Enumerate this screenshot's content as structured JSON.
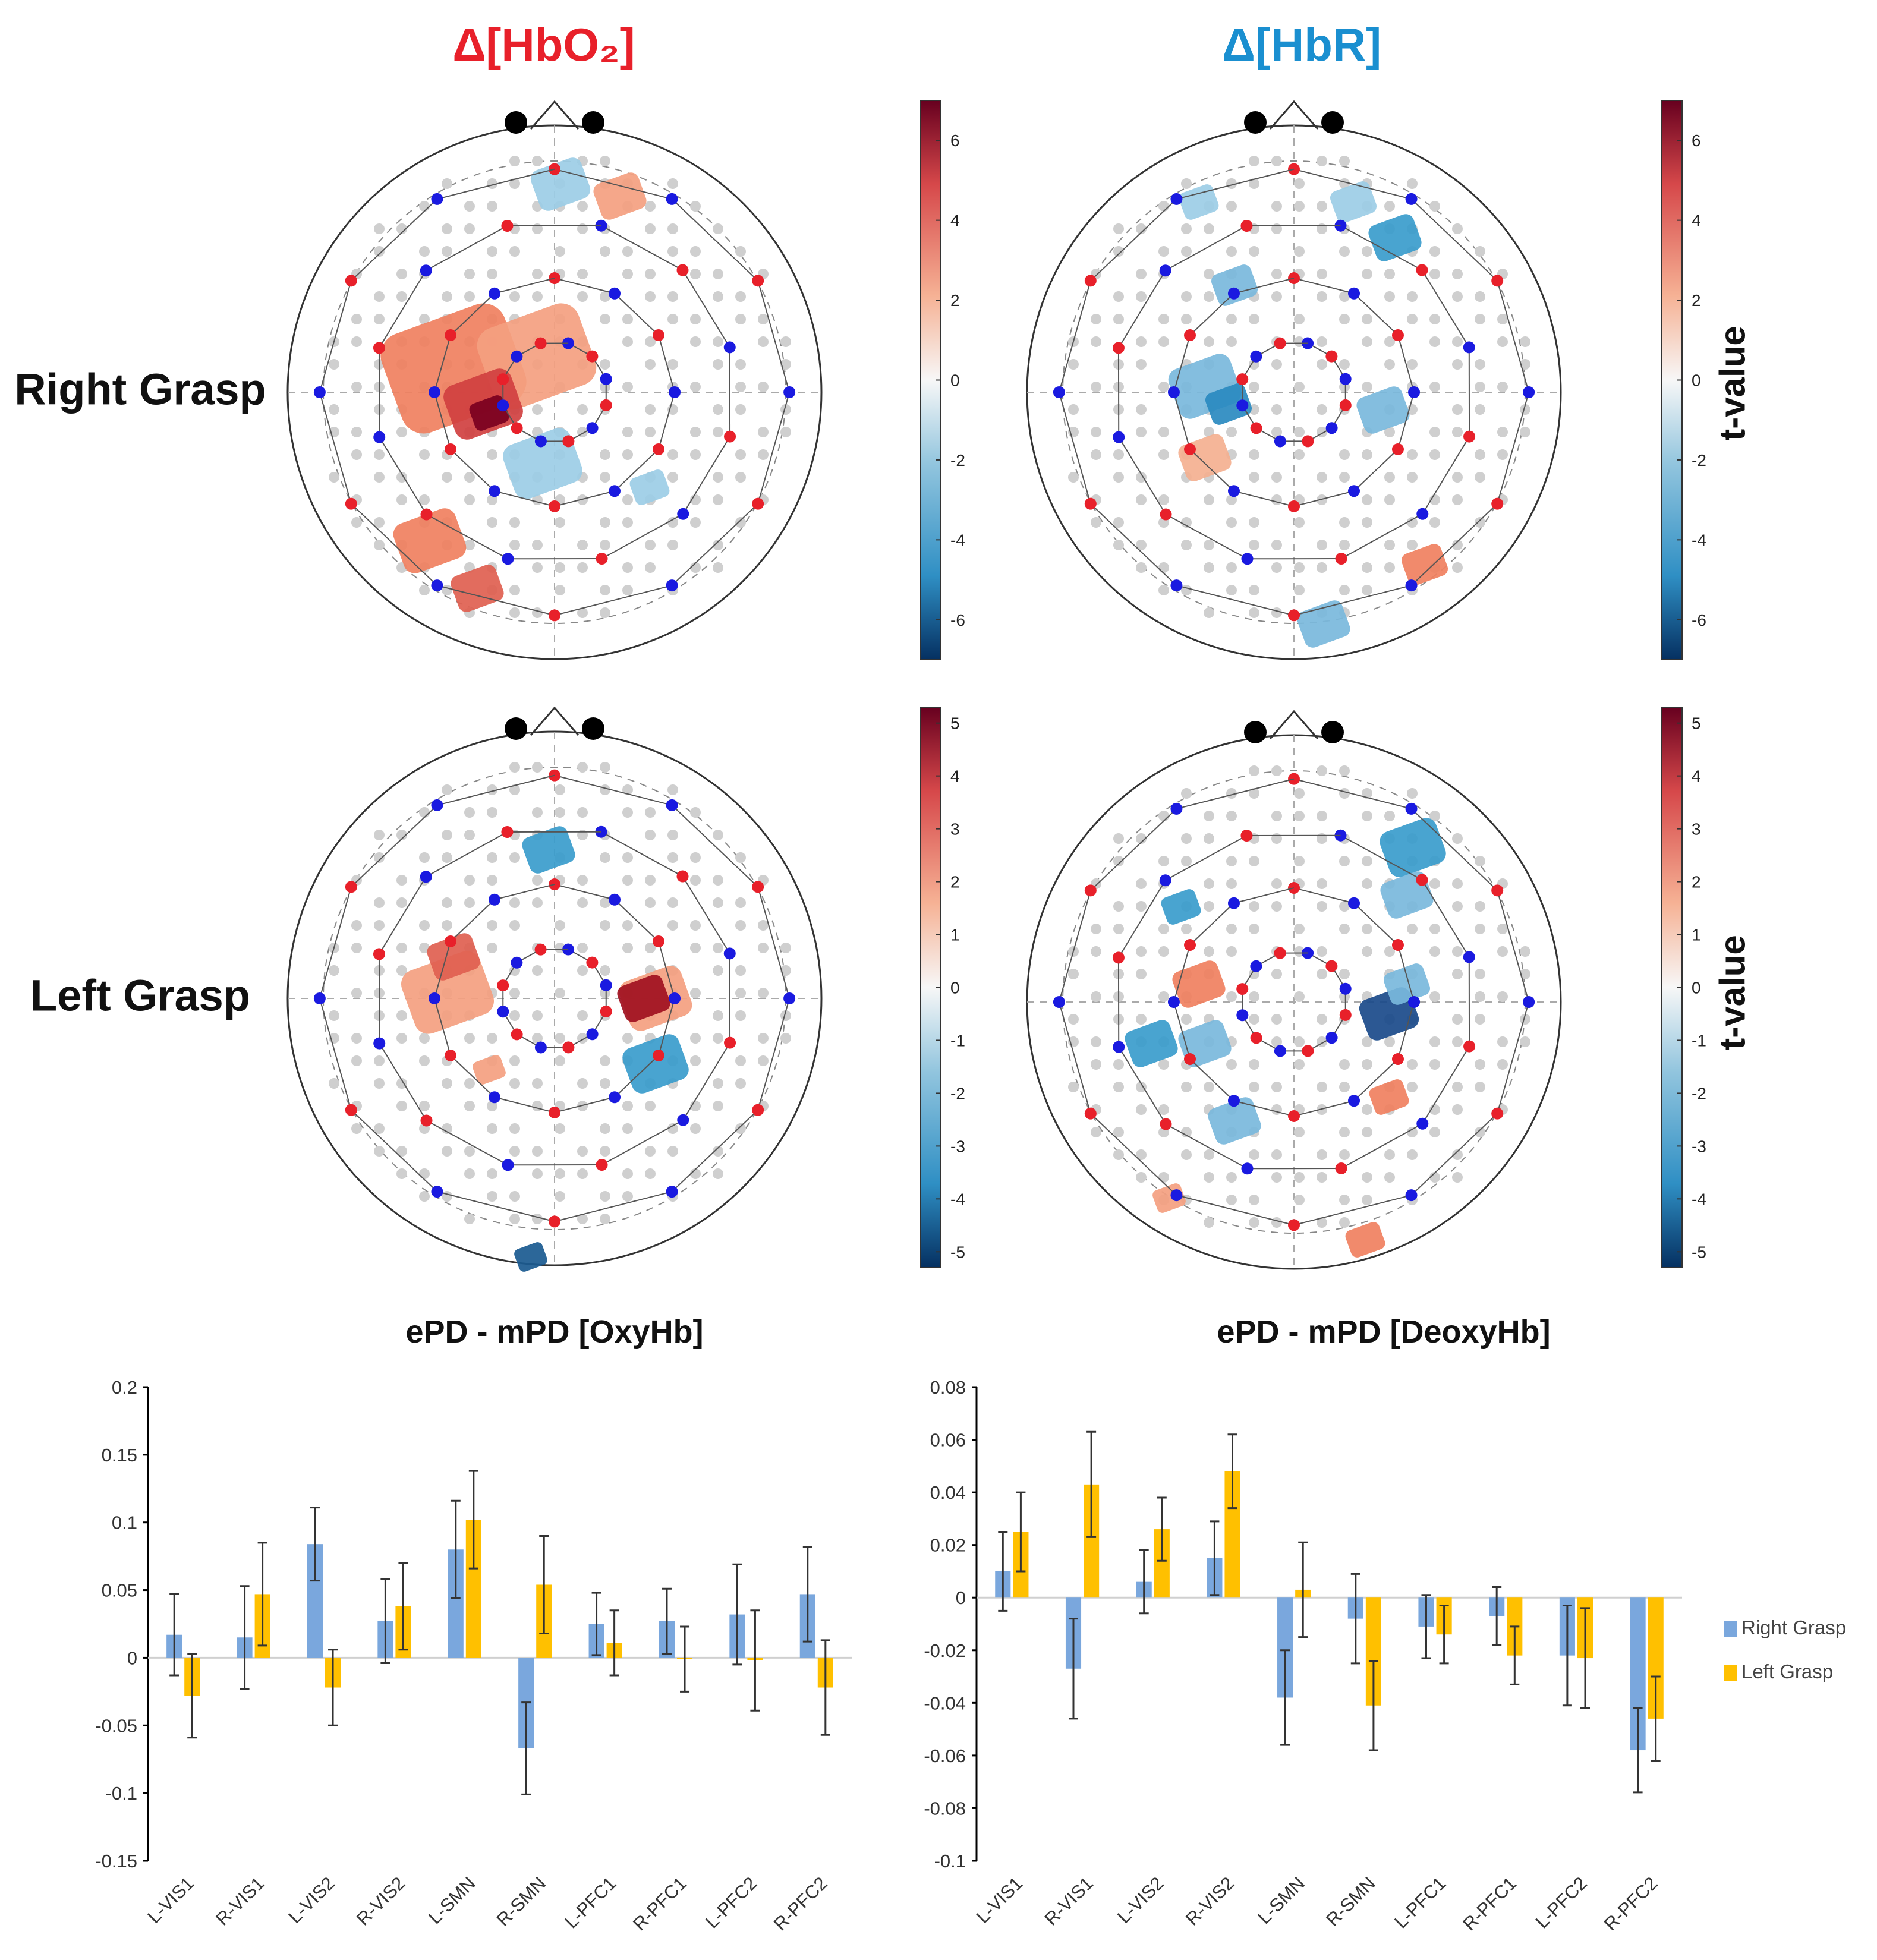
{
  "columns": {
    "hbo2": "Δ[HbO₂]",
    "hbr": "Δ[HbR]"
  },
  "rows": {
    "right": "Right Grasp",
    "left": "Left Grasp"
  },
  "colorbar_label": "t-value",
  "colors": {
    "hbo2": "#e8202a",
    "hbr": "#1a8fd0",
    "right": "#7aa7dd",
    "left": "#ffc000",
    "red_optode": "#e8202a",
    "blue_optode": "#1a1ae0"
  },
  "colorbars": [
    {
      "ticks": [
        "6",
        "4",
        "2",
        "0",
        "-2",
        "-4",
        "-6"
      ],
      "range": [
        -7,
        7
      ]
    },
    {
      "ticks": [
        "6",
        "4",
        "2",
        "0",
        "-2",
        "-4",
        "-6"
      ],
      "range": [
        -7,
        7
      ]
    },
    {
      "ticks": [
        "5",
        "4",
        "3",
        "2",
        "1",
        "0",
        "-1",
        "-2",
        "-3",
        "-4",
        "-5"
      ],
      "range": [
        -5.3,
        5.3
      ]
    },
    {
      "ticks": [
        "5",
        "4",
        "3",
        "2",
        "1",
        "0",
        "-1",
        "-2",
        "-3",
        "-4",
        "-5"
      ],
      "range": [
        -5.3,
        5.3
      ]
    }
  ],
  "chart_data": [
    {
      "type": "bar",
      "title": "ePD - mPD [OxyHb]",
      "categories": [
        "L-VIS1",
        "R-VIS1",
        "L-VIS2",
        "R-VIS2",
        "L-SMN",
        "R-SMN",
        "L-PFC1",
        "R-PFC1",
        "L-PFC2",
        "R-PFC2"
      ],
      "ylim": [
        -0.15,
        0.2
      ],
      "yticks": [
        "0.2",
        "0.15",
        "0.1",
        "0.05",
        "0",
        "-0.05",
        "-0.1",
        "-0.15"
      ],
      "ytick_values": [
        0.2,
        0.15,
        0.1,
        0.05,
        0,
        -0.05,
        -0.1,
        -0.15
      ],
      "series": [
        {
          "name": "Right Grasp",
          "values": [
            0.017,
            0.015,
            0.084,
            0.027,
            0.08,
            -0.067,
            0.025,
            0.027,
            0.032,
            0.047
          ],
          "errors": [
            0.03,
            0.038,
            0.027,
            0.031,
            0.036,
            0.034,
            0.023,
            0.024,
            0.037,
            0.035
          ]
        },
        {
          "name": "Left Grasp",
          "values": [
            -0.028,
            0.047,
            -0.022,
            0.038,
            0.102,
            0.054,
            0.011,
            -0.001,
            -0.002,
            -0.022
          ],
          "errors": [
            0.031,
            0.038,
            0.028,
            0.032,
            0.036,
            0.036,
            0.024,
            0.024,
            0.037,
            0.035
          ]
        }
      ],
      "legend": "none"
    },
    {
      "type": "bar",
      "title": "ePD - mPD [DeoxyHb]",
      "categories": [
        "L-VIS1",
        "R-VIS1",
        "L-VIS2",
        "R-VIS2",
        "L-SMN",
        "R-SMN",
        "L-PFC1",
        "R-PFC1",
        "L-PFC2",
        "R-PFC2"
      ],
      "ylim": [
        -0.1,
        0.08
      ],
      "yticks": [
        "0.08",
        "0.06",
        "0.04",
        "0.02",
        "0",
        "-0.02",
        "-0.04",
        "-0.06",
        "-0.08",
        "-0.1"
      ],
      "ytick_values": [
        0.08,
        0.06,
        0.04,
        0.02,
        0,
        -0.02,
        -0.04,
        -0.06,
        -0.08,
        -0.1
      ],
      "series": [
        {
          "name": "Right Grasp",
          "values": [
            0.01,
            -0.027,
            0.006,
            0.015,
            -0.038,
            -0.008,
            -0.011,
            -0.007,
            -0.022,
            -0.058
          ],
          "errors": [
            0.015,
            0.019,
            0.012,
            0.014,
            0.018,
            0.017,
            0.012,
            0.011,
            0.019,
            0.016
          ]
        },
        {
          "name": "Left Grasp",
          "values": [
            0.025,
            0.043,
            0.026,
            0.048,
            0.003,
            -0.041,
            -0.014,
            -0.022,
            -0.023,
            -0.046
          ],
          "errors": [
            0.015,
            0.02,
            0.012,
            0.014,
            0.018,
            0.017,
            0.011,
            0.011,
            0.019,
            0.016
          ]
        }
      ],
      "legend": "right"
    }
  ]
}
